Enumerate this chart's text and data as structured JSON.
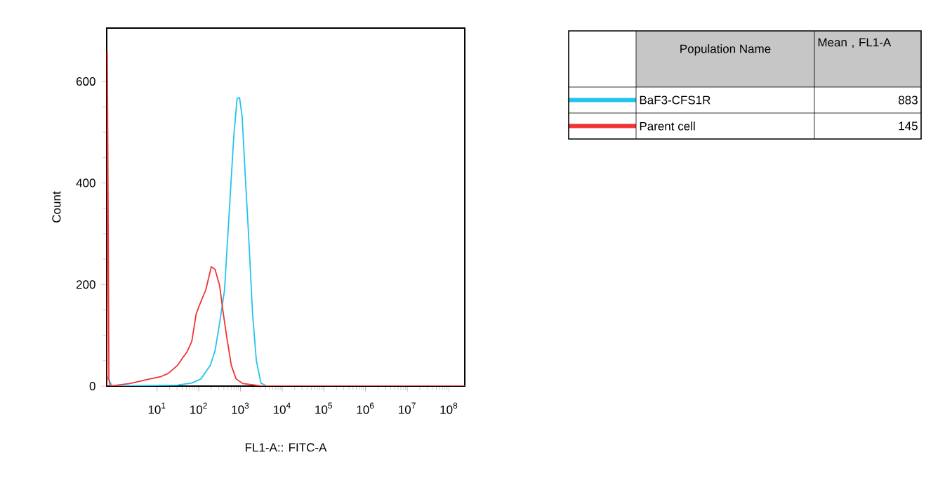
{
  "chart_data": {
    "type": "line",
    "xlabel": "FL1-A:: FITC-A",
    "ylabel": "Count",
    "log": "x",
    "xlim": [
      0.62,
      240000000
    ],
    "ylim": [
      0,
      705
    ],
    "xticks": [
      {
        "value": 10,
        "label": "10$^{1}$"
      },
      {
        "value": 100,
        "label": "10$^{2}$"
      },
      {
        "value": 1000,
        "label": "10$^{3}$"
      },
      {
        "value": 10000,
        "label": "10$^{4}$"
      },
      {
        "value": 100000,
        "label": "10$^{5}$"
      },
      {
        "value": 1000000,
        "label": "10$^{6}$"
      },
      {
        "value": 10000000,
        "label": "10$^{7}$"
      },
      {
        "value": 100000000,
        "label": "10$^{8}$"
      }
    ],
    "yticks": [
      0,
      200,
      400,
      600
    ],
    "legend": "right",
    "annotations": [
      "Population Name",
      "Mean , FL1-A",
      "883",
      "145"
    ],
    "series": [
      {
        "name": "BaF3-CFS1R",
        "color": "#22c4ee",
        "x": [
          0.63,
          0.83,
          31,
          68,
          112,
          190,
          245,
          316,
          415,
          540,
          692,
          830,
          950,
          1100,
          1310,
          1580,
          1950,
          2400,
          3090,
          4270,
          240000000
        ],
        "values": [
          19,
          0,
          2,
          6,
          14,
          41,
          69,
          124,
          189,
          345,
          492,
          566,
          568,
          530,
          411,
          292,
          143,
          51,
          6,
          0,
          0
        ]
      },
      {
        "name": "Parent cell",
        "color": "#f03434",
        "x": [
          0.63,
          0.64,
          0.67,
          0.7,
          0.75,
          2.2,
          6.6,
          12.6,
          18.6,
          31,
          40.5,
          52,
          68,
          87,
          112,
          147,
          200,
          245,
          316,
          388,
          468,
          603,
          787,
          1150,
          3300,
          240000000
        ],
        "values": [
          0,
          658,
          337,
          15,
          0,
          5,
          14,
          19,
          25,
          41,
          55,
          67,
          88,
          143,
          166,
          189,
          235,
          230,
          198,
          143,
          97,
          41,
          14,
          5,
          0,
          0
        ]
      }
    ]
  }
}
